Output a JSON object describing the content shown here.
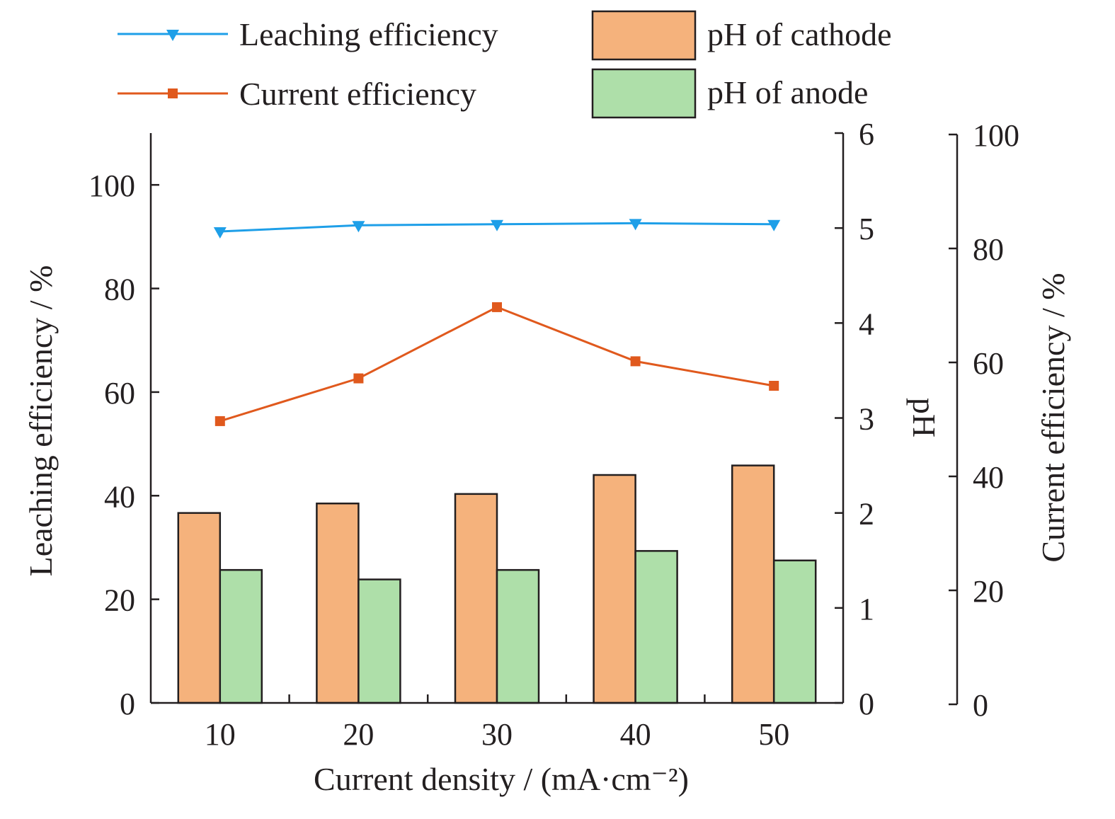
{
  "chart_data": {
    "type": "bar",
    "categories": [
      "10",
      "20",
      "30",
      "40",
      "50"
    ],
    "xlabel": "Current density / (mA·cm⁻²)",
    "axes": {
      "left": {
        "label": "Leaching efficiency / %",
        "range": [
          0,
          110
        ],
        "ticks": [
          0,
          20,
          40,
          60,
          80,
          100
        ]
      },
      "right_inner": {
        "label": "pH",
        "range": [
          0,
          6
        ],
        "ticks": [
          0,
          1,
          2,
          3,
          4,
          5,
          6
        ]
      },
      "right_outer": {
        "label": "Current efficiency / %",
        "range": [
          0,
          100
        ],
        "ticks": [
          0,
          20,
          40,
          60,
          80,
          100
        ]
      }
    },
    "series": [
      {
        "name": "pH of cathode",
        "kind": "bar",
        "axis": "right_inner",
        "color": "#f5b27c",
        "values": [
          2.0,
          2.1,
          2.2,
          2.4,
          2.5
        ]
      },
      {
        "name": "pH of anode",
        "kind": "bar",
        "axis": "right_inner",
        "color": "#aedfa9",
        "values": [
          1.4,
          1.3,
          1.4,
          1.6,
          1.5
        ]
      },
      {
        "name": "Leaching efficiency",
        "kind": "line",
        "marker": "triangle-down",
        "axis": "left",
        "color": "#1e9fe8",
        "values": [
          91.0,
          92.2,
          92.4,
          92.6,
          92.4
        ]
      },
      {
        "name": "Current efficiency",
        "kind": "line",
        "marker": "square",
        "axis": "right_outer",
        "color": "#e0591d",
        "values": [
          49.7,
          57.2,
          69.7,
          60.2,
          55.9
        ]
      }
    ],
    "legend": {
      "position": "top",
      "entries": [
        "Leaching efficiency",
        "Current efficiency",
        "pH of cathode",
        "pH of anode"
      ]
    },
    "grid": false
  }
}
